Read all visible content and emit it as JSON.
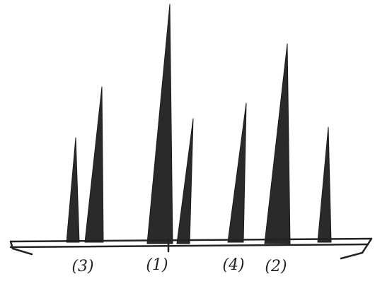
{
  "labels": [
    "(3)",
    "(1)",
    "(4)",
    "(2)"
  ]
}
